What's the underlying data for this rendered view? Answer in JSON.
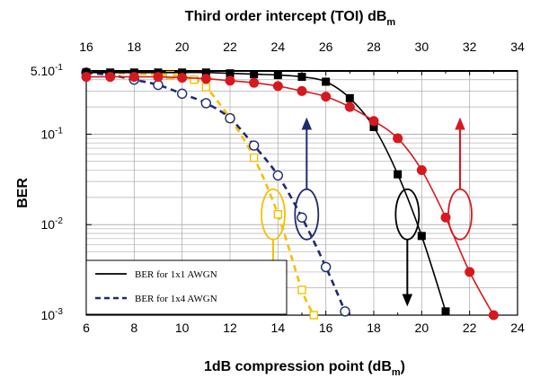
{
  "chart_data": {
    "type": "line",
    "y_scale": "log",
    "ylim": [
      0.001,
      0.5
    ],
    "xlim": [
      6,
      24
    ],
    "top_xlim": [
      16,
      34
    ],
    "grid": true,
    "legend_position": "bottom-left",
    "title": "",
    "xlabel": "1dB compression point (dB",
    "xlabel_sub": "m",
    "xlabel_tail": ")",
    "ylabel": "BER",
    "top_xlabel": "Third order intercept (TOI) dB",
    "top_xlabel_sub": "m",
    "x_ticks": [
      "6",
      "8",
      "10",
      "12",
      "14",
      "16",
      "18",
      "20",
      "22",
      "24"
    ],
    "top_x_ticks": [
      "16",
      "18",
      "20",
      "22",
      "24",
      "26",
      "28",
      "30",
      "32",
      "34"
    ],
    "y_ticks": [
      {
        "value": 0.5,
        "label": "5.10",
        "sup": "-1"
      },
      {
        "value": 0.1,
        "label": "10",
        "sup": "-1"
      },
      {
        "value": 0.01,
        "label": "10",
        "sup": "-2"
      },
      {
        "value": 0.001,
        "label": "10",
        "sup": "-3"
      }
    ],
    "legend": [
      {
        "label": "BER for 1x1 AWGN",
        "style": "solid"
      },
      {
        "label": "BER for 1x4 AWGN",
        "style": "dashed"
      }
    ],
    "series": [
      {
        "color": "#f5c000",
        "marker": "square-open",
        "dashed": true,
        "x": [
          6,
          9.5,
          10.5,
          11,
          12,
          13,
          14,
          15,
          15.5
        ],
        "y": [
          0.48,
          0.45,
          0.4,
          0.33,
          0.15,
          0.055,
          0.013,
          0.0019,
          0.001
        ]
      },
      {
        "color": "#202a70",
        "marker": "circle-open",
        "dashed": true,
        "x": [
          6,
          7,
          8,
          9,
          10,
          11,
          12,
          13,
          14,
          15,
          16,
          16.8
        ],
        "y": [
          0.48,
          0.45,
          0.4,
          0.35,
          0.28,
          0.22,
          0.15,
          0.075,
          0.035,
          0.012,
          0.0034,
          0.0011
        ]
      },
      {
        "color": "#000000",
        "marker": "square-filled",
        "dashed": false,
        "x": [
          6,
          7,
          8,
          9,
          10,
          11,
          12,
          13,
          14,
          15,
          16,
          17,
          18,
          19,
          20,
          21
        ],
        "y": [
          0.48,
          0.48,
          0.48,
          0.48,
          0.48,
          0.48,
          0.47,
          0.46,
          0.45,
          0.43,
          0.38,
          0.25,
          0.12,
          0.036,
          0.0075,
          0.0011
        ]
      },
      {
        "color": "#d7191f",
        "marker": "circle-filled",
        "dashed": false,
        "x": [
          6,
          7,
          8,
          9,
          10,
          11,
          12,
          13,
          14,
          15,
          16,
          17,
          18,
          19,
          20,
          21,
          22,
          23
        ],
        "y": [
          0.43,
          0.43,
          0.43,
          0.43,
          0.42,
          0.41,
          0.39,
          0.37,
          0.34,
          0.3,
          0.26,
          0.2,
          0.14,
          0.09,
          0.04,
          0.012,
          0.003,
          0.001
        ]
      }
    ],
    "annotations": [
      {
        "color": "#f5c000",
        "cx": 13.8,
        "cy": 0.013,
        "arrow": "down"
      },
      {
        "color": "#202a70",
        "cx": 15.2,
        "cy": 0.013,
        "arrow": "up"
      },
      {
        "color": "#000000",
        "cx": 19.4,
        "cy": 0.013,
        "arrow": "down"
      },
      {
        "color": "#d7191f",
        "cx": 21.6,
        "cy": 0.013,
        "arrow": "up"
      }
    ]
  }
}
